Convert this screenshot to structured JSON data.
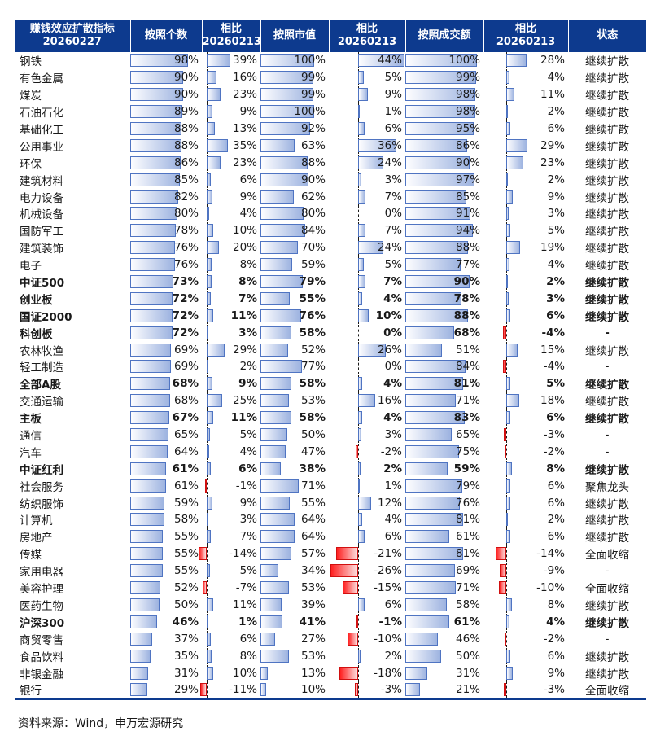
{
  "headers": [
    "赚钱效应扩散指标\n20260227",
    "按照个数",
    "相比\n20260213",
    "按照市值",
    "相比\n20260213",
    "按照成交额",
    "相比\n20260213",
    "状态"
  ],
  "source": "资料来源：Wind，申万宏源研究",
  "colors": {
    "header_bg": "#0d3a8e",
    "bar_pos": "#9db3e0",
    "bar_neg": "#ff2020",
    "bold_text": "#0d3a8e"
  },
  "chart_data": {
    "type": "table",
    "value_unit": "%",
    "columns": [
      "name",
      "count",
      "count_chg",
      "mcap",
      "mcap_chg",
      "turnover",
      "turnover_chg",
      "status"
    ],
    "rows": [
      {
        "name": "钢铁",
        "bold": false,
        "count": 98,
        "count_chg": 39,
        "mcap": 100,
        "mcap_chg": 44,
        "turnover": 100,
        "turnover_chg": 28,
        "status": "继续扩散"
      },
      {
        "name": "有色金属",
        "bold": false,
        "count": 90,
        "count_chg": 16,
        "mcap": 99,
        "mcap_chg": 5,
        "turnover": 99,
        "turnover_chg": 4,
        "status": "继续扩散"
      },
      {
        "name": "煤炭",
        "bold": false,
        "count": 90,
        "count_chg": 23,
        "mcap": 99,
        "mcap_chg": 9,
        "turnover": 98,
        "turnover_chg": 11,
        "status": "继续扩散"
      },
      {
        "name": "石油石化",
        "bold": false,
        "count": 89,
        "count_chg": 9,
        "mcap": 100,
        "mcap_chg": 1,
        "turnover": 98,
        "turnover_chg": 2,
        "status": "继续扩散"
      },
      {
        "name": "基础化工",
        "bold": false,
        "count": 88,
        "count_chg": 13,
        "mcap": 92,
        "mcap_chg": 6,
        "turnover": 95,
        "turnover_chg": 6,
        "status": "继续扩散"
      },
      {
        "name": "公用事业",
        "bold": false,
        "count": 88,
        "count_chg": 35,
        "mcap": 63,
        "mcap_chg": 36,
        "turnover": 86,
        "turnover_chg": 29,
        "status": "继续扩散"
      },
      {
        "name": "环保",
        "bold": false,
        "count": 86,
        "count_chg": 23,
        "mcap": 88,
        "mcap_chg": 24,
        "turnover": 90,
        "turnover_chg": 23,
        "status": "继续扩散"
      },
      {
        "name": "建筑材料",
        "bold": false,
        "count": 85,
        "count_chg": 6,
        "mcap": 90,
        "mcap_chg": 3,
        "turnover": 97,
        "turnover_chg": 2,
        "status": "继续扩散"
      },
      {
        "name": "电力设备",
        "bold": false,
        "count": 82,
        "count_chg": 9,
        "mcap": 62,
        "mcap_chg": 7,
        "turnover": 85,
        "turnover_chg": 9,
        "status": "继续扩散"
      },
      {
        "name": "机械设备",
        "bold": false,
        "count": 80,
        "count_chg": 4,
        "mcap": 80,
        "mcap_chg": 0,
        "turnover": 91,
        "turnover_chg": 3,
        "status": "继续扩散"
      },
      {
        "name": "国防军工",
        "bold": false,
        "count": 78,
        "count_chg": 10,
        "mcap": 84,
        "mcap_chg": 7,
        "turnover": 94,
        "turnover_chg": 5,
        "status": "继续扩散"
      },
      {
        "name": "建筑装饰",
        "bold": false,
        "count": 76,
        "count_chg": 20,
        "mcap": 70,
        "mcap_chg": 24,
        "turnover": 88,
        "turnover_chg": 19,
        "status": "继续扩散"
      },
      {
        "name": "电子",
        "bold": false,
        "count": 76,
        "count_chg": 8,
        "mcap": 59,
        "mcap_chg": 5,
        "turnover": 77,
        "turnover_chg": 4,
        "status": "继续扩散"
      },
      {
        "name": "中证500",
        "bold": true,
        "count": 73,
        "count_chg": 8,
        "mcap": 79,
        "mcap_chg": 7,
        "turnover": 90,
        "turnover_chg": 2,
        "status": "继续扩散"
      },
      {
        "name": "创业板",
        "bold": true,
        "count": 72,
        "count_chg": 7,
        "mcap": 55,
        "mcap_chg": 4,
        "turnover": 78,
        "turnover_chg": 3,
        "status": "继续扩散"
      },
      {
        "name": "国证2000",
        "bold": true,
        "count": 72,
        "count_chg": 11,
        "mcap": 76,
        "mcap_chg": 10,
        "turnover": 88,
        "turnover_chg": 6,
        "status": "继续扩散"
      },
      {
        "name": "科创板",
        "bold": true,
        "count": 72,
        "count_chg": 3,
        "mcap": 58,
        "mcap_chg": 0,
        "turnover": 68,
        "turnover_chg": -4,
        "status": "-"
      },
      {
        "name": "农林牧渔",
        "bold": false,
        "count": 69,
        "count_chg": 29,
        "mcap": 52,
        "mcap_chg": 26,
        "turnover": 51,
        "turnover_chg": 15,
        "status": "继续扩散"
      },
      {
        "name": "轻工制造",
        "bold": false,
        "count": 69,
        "count_chg": 2,
        "mcap": 77,
        "mcap_chg": 0,
        "turnover": 84,
        "turnover_chg": -4,
        "status": "-"
      },
      {
        "name": "全部A股",
        "bold": true,
        "count": 68,
        "count_chg": 9,
        "mcap": 58,
        "mcap_chg": 4,
        "turnover": 81,
        "turnover_chg": 5,
        "status": "继续扩散"
      },
      {
        "name": "交通运输",
        "bold": false,
        "count": 68,
        "count_chg": 25,
        "mcap": 53,
        "mcap_chg": 16,
        "turnover": 71,
        "turnover_chg": 18,
        "status": "继续扩散"
      },
      {
        "name": "主板",
        "bold": true,
        "count": 67,
        "count_chg": 11,
        "mcap": 58,
        "mcap_chg": 4,
        "turnover": 83,
        "turnover_chg": 6,
        "status": "继续扩散"
      },
      {
        "name": "通信",
        "bold": false,
        "count": 65,
        "count_chg": 5,
        "mcap": 50,
        "mcap_chg": 3,
        "turnover": 65,
        "turnover_chg": -3,
        "status": "-"
      },
      {
        "name": "汽车",
        "bold": false,
        "count": 64,
        "count_chg": 4,
        "mcap": 47,
        "mcap_chg": -2,
        "turnover": 75,
        "turnover_chg": -2,
        "status": "-"
      },
      {
        "name": "中证红利",
        "bold": true,
        "count": 61,
        "count_chg": 6,
        "mcap": 38,
        "mcap_chg": 2,
        "turnover": 59,
        "turnover_chg": 8,
        "status": "继续扩散"
      },
      {
        "name": "社会服务",
        "bold": false,
        "count": 61,
        "count_chg": -1,
        "mcap": 71,
        "mcap_chg": 1,
        "turnover": 79,
        "turnover_chg": 6,
        "status": "聚焦龙头"
      },
      {
        "name": "纺织服饰",
        "bold": false,
        "count": 59,
        "count_chg": 9,
        "mcap": 55,
        "mcap_chg": 12,
        "turnover": 76,
        "turnover_chg": 6,
        "status": "继续扩散"
      },
      {
        "name": "计算机",
        "bold": false,
        "count": 58,
        "count_chg": 3,
        "mcap": 64,
        "mcap_chg": 4,
        "turnover": 81,
        "turnover_chg": 2,
        "status": "继续扩散"
      },
      {
        "name": "房地产",
        "bold": false,
        "count": 55,
        "count_chg": 7,
        "mcap": 64,
        "mcap_chg": 6,
        "turnover": 61,
        "turnover_chg": 6,
        "status": "继续扩散"
      },
      {
        "name": "传媒",
        "bold": false,
        "count": 55,
        "count_chg": -14,
        "mcap": 57,
        "mcap_chg": -21,
        "turnover": 81,
        "turnover_chg": -14,
        "status": "全面收缩"
      },
      {
        "name": "家用电器",
        "bold": false,
        "count": 55,
        "count_chg": 5,
        "mcap": 34,
        "mcap_chg": -26,
        "turnover": 69,
        "turnover_chg": -9,
        "status": "-"
      },
      {
        "name": "美容护理",
        "bold": false,
        "count": 52,
        "count_chg": -7,
        "mcap": 53,
        "mcap_chg": -15,
        "turnover": 71,
        "turnover_chg": -10,
        "status": "全面收缩"
      },
      {
        "name": "医药生物",
        "bold": false,
        "count": 50,
        "count_chg": 11,
        "mcap": 39,
        "mcap_chg": 6,
        "turnover": 58,
        "turnover_chg": 8,
        "status": "继续扩散"
      },
      {
        "name": "沪深300",
        "bold": true,
        "count": 46,
        "count_chg": 1,
        "mcap": 41,
        "mcap_chg": -1,
        "turnover": 61,
        "turnover_chg": 4,
        "status": "继续扩散"
      },
      {
        "name": "商贸零售",
        "bold": false,
        "count": 37,
        "count_chg": 6,
        "mcap": 27,
        "mcap_chg": -10,
        "turnover": 46,
        "turnover_chg": -2,
        "status": "-"
      },
      {
        "name": "食品饮料",
        "bold": false,
        "count": 35,
        "count_chg": 8,
        "mcap": 53,
        "mcap_chg": 2,
        "turnover": 50,
        "turnover_chg": 6,
        "status": "继续扩散"
      },
      {
        "name": "非银金融",
        "bold": false,
        "count": 31,
        "count_chg": 10,
        "mcap": 13,
        "mcap_chg": -18,
        "turnover": 31,
        "turnover_chg": 9,
        "status": "继续扩散"
      },
      {
        "name": "银行",
        "bold": false,
        "count": 29,
        "count_chg": -11,
        "mcap": 10,
        "mcap_chg": -3,
        "turnover": 21,
        "turnover_chg": -3,
        "status": "全面收缩"
      }
    ]
  }
}
